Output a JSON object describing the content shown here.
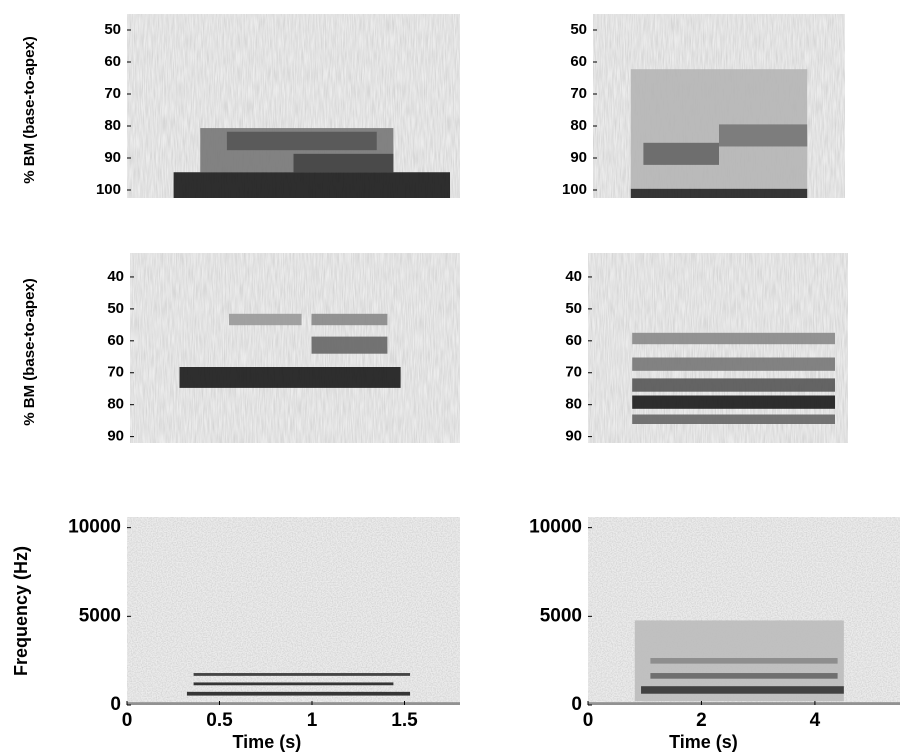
{
  "chart_data": [
    {
      "type": "spectrogram",
      "ylabel": "% BM (base-to-apex)",
      "ylim": [
        45,
        102.5
      ],
      "y_inverted": true,
      "yticks": [
        50,
        60,
        70,
        80,
        90,
        100
      ]
    },
    {
      "type": "spectrogram",
      "ylim": [
        45,
        102.5
      ],
      "y_inverted": true,
      "yticks": [
        50,
        60,
        70,
        80,
        90,
        100
      ]
    },
    {
      "type": "spectrogram",
      "ylabel": "% BM (base-to-apex)",
      "ylim": [
        32.5,
        92
      ],
      "y_inverted": true,
      "yticks": [
        40,
        50,
        60,
        70,
        80,
        90
      ]
    },
    {
      "type": "spectrogram",
      "ylim": [
        32.5,
        92
      ],
      "y_inverted": true,
      "yticks": [
        40,
        50,
        60,
        70,
        80,
        90
      ]
    },
    {
      "type": "spectrogram",
      "ylabel": "Frequency (Hz)",
      "xlabel": "Time (s)",
      "ylim": [
        0,
        10600
      ],
      "yticks": [
        0,
        5000,
        10000
      ],
      "xlim": [
        0,
        1.8
      ],
      "xticks": [
        0,
        0.5,
        1,
        1.5
      ]
    },
    {
      "type": "spectrogram",
      "xlabel": "Time (s)",
      "ylim": [
        0,
        10600
      ],
      "yticks": [
        0,
        5000,
        10000
      ],
      "xlim": [
        0,
        5.5
      ],
      "xticks": [
        0,
        2,
        4
      ]
    }
  ]
}
